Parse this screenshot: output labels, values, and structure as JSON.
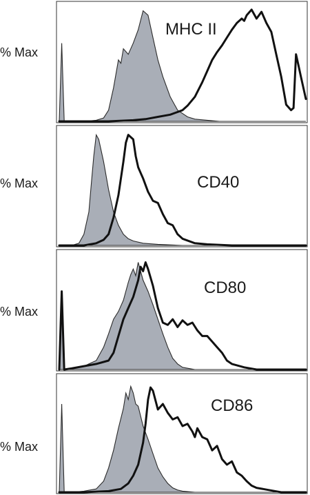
{
  "chart_data": [
    {
      "type": "area",
      "ylabel": "% Max",
      "marker": "MHC II",
      "x_range": [
        0,
        100
      ],
      "ylim": [
        0,
        100
      ],
      "series": [
        {
          "style": "filled-gray",
          "x": [
            0,
            1,
            2,
            10,
            15,
            18,
            20,
            22,
            24,
            25,
            26,
            28,
            30,
            32,
            34,
            36,
            38,
            40,
            42,
            45,
            48,
            52,
            55,
            60,
            65,
            70,
            75,
            100
          ],
          "values": [
            0,
            70,
            0,
            0,
            1,
            3,
            10,
            30,
            55,
            52,
            65,
            60,
            70,
            82,
            99,
            95,
            75,
            55,
            40,
            22,
            10,
            4,
            2,
            1,
            0,
            0,
            0,
            0
          ]
        },
        {
          "style": "black-line",
          "x": [
            0,
            2,
            10,
            20,
            30,
            35,
            40,
            45,
            50,
            52,
            55,
            58,
            60,
            62,
            64,
            66,
            68,
            70,
            72,
            74,
            75,
            76,
            78,
            80,
            82,
            84,
            86,
            88,
            90,
            92,
            94,
            95,
            96,
            97,
            98,
            100
          ],
          "values": [
            0,
            0,
            0,
            0,
            1,
            2,
            4,
            6,
            10,
            14,
            22,
            35,
            45,
            55,
            62,
            68,
            75,
            82,
            88,
            92,
            90,
            95,
            100,
            92,
            98,
            88,
            80,
            60,
            40,
            15,
            10,
            12,
            60,
            50,
            40,
            20
          ]
        }
      ]
    },
    {
      "type": "area",
      "ylabel": "% Max",
      "marker": "CD40",
      "x_range": [
        0,
        100
      ],
      "ylim": [
        0,
        100
      ],
      "series": [
        {
          "style": "filled-gray",
          "x": [
            0,
            1,
            2,
            5,
            8,
            10,
            12,
            13,
            14,
            15,
            16,
            18,
            20,
            22,
            24,
            26,
            28,
            30,
            34,
            40,
            50,
            100
          ],
          "values": [
            0,
            0,
            0,
            0,
            2,
            10,
            30,
            55,
            80,
            99,
            95,
            75,
            50,
            30,
            18,
            10,
            6,
            4,
            2,
            1,
            0,
            0
          ]
        },
        {
          "style": "black-line",
          "x": [
            0,
            5,
            10,
            15,
            18,
            20,
            22,
            24,
            26,
            27,
            28,
            30,
            31,
            32,
            33,
            34,
            36,
            38,
            40,
            42,
            44,
            46,
            48,
            50,
            55,
            60,
            70,
            100
          ],
          "values": [
            0,
            0,
            0,
            2,
            5,
            10,
            25,
            45,
            75,
            92,
            99,
            95,
            80,
            70,
            65,
            60,
            48,
            40,
            38,
            28,
            20,
            18,
            10,
            6,
            2,
            1,
            0,
            0
          ]
        }
      ]
    },
    {
      "type": "area",
      "ylabel": "% Max",
      "marker": "CD80",
      "x_range": [
        0,
        100
      ],
      "ylim": [
        0,
        100
      ],
      "series": [
        {
          "style": "filled-gray",
          "x": [
            0,
            1,
            2,
            5,
            10,
            15,
            18,
            20,
            22,
            24,
            26,
            28,
            29,
            30,
            31,
            32,
            34,
            36,
            38,
            40,
            42,
            44,
            46,
            48,
            50,
            55,
            60,
            100
          ],
          "values": [
            0,
            60,
            0,
            1,
            3,
            8,
            20,
            32,
            45,
            52,
            62,
            78,
            85,
            90,
            84,
            96,
            80,
            70,
            58,
            45,
            32,
            20,
            10,
            5,
            2,
            0,
            0,
            0
          ]
        },
        {
          "style": "black-line",
          "x": [
            0,
            1,
            2,
            5,
            10,
            15,
            20,
            22,
            24,
            26,
            28,
            30,
            32,
            33,
            34,
            35,
            36,
            38,
            40,
            42,
            44,
            46,
            48,
            50,
            52,
            54,
            56,
            58,
            60,
            62,
            64,
            66,
            68,
            70,
            75,
            80,
            100
          ],
          "values": [
            0,
            70,
            0,
            1,
            3,
            5,
            8,
            15,
            30,
            45,
            55,
            65,
            80,
            92,
            88,
            96,
            90,
            75,
            55,
            42,
            40,
            45,
            38,
            44,
            40,
            42,
            35,
            30,
            30,
            25,
            20,
            15,
            8,
            5,
            2,
            0,
            0
          ]
        }
      ]
    },
    {
      "type": "area",
      "ylabel": "% Max",
      "marker": "CD86",
      "x_range": [
        0,
        100
      ],
      "ylim": [
        0,
        100
      ],
      "series": [
        {
          "style": "filled-gray",
          "x": [
            0,
            1,
            2,
            5,
            10,
            15,
            18,
            20,
            22,
            24,
            26,
            27,
            28,
            29,
            30,
            31,
            32,
            34,
            36,
            38,
            40,
            42,
            44,
            46,
            48,
            50,
            55,
            60,
            100
          ],
          "values": [
            0,
            80,
            0,
            0,
            1,
            3,
            10,
            22,
            38,
            58,
            76,
            90,
            84,
            96,
            90,
            80,
            78,
            60,
            48,
            35,
            22,
            14,
            8,
            4,
            2,
            1,
            0,
            0,
            0
          ]
        },
        {
          "style": "black-line",
          "x": [
            0,
            5,
            10,
            20,
            25,
            28,
            30,
            32,
            34,
            35,
            36,
            37,
            38,
            40,
            42,
            44,
            46,
            48,
            50,
            52,
            54,
            55,
            56,
            58,
            60,
            62,
            64,
            66,
            68,
            70,
            72,
            74,
            76,
            78,
            80,
            85,
            90,
            100
          ],
          "values": [
            0,
            0,
            0,
            1,
            3,
            8,
            15,
            25,
            45,
            62,
            84,
            95,
            92,
            75,
            80,
            72,
            66,
            68,
            60,
            62,
            55,
            50,
            58,
            50,
            48,
            38,
            42,
            30,
            25,
            28,
            18,
            15,
            10,
            6,
            4,
            2,
            0,
            0
          ]
        }
      ]
    }
  ]
}
